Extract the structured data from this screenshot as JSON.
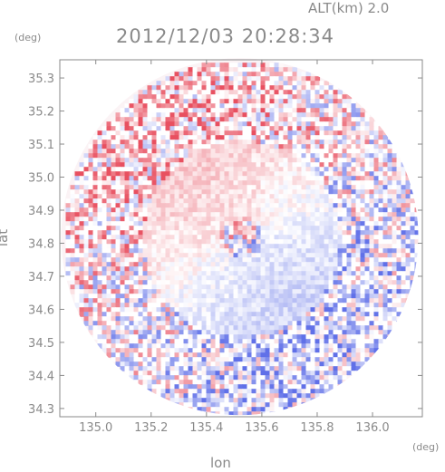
{
  "header": {
    "altitude_label": "ALT(km) 2.0",
    "datetime": "2012/12/03 20:28:34"
  },
  "axes": {
    "x_label": "lon",
    "y_label": "lat",
    "x_unit": "(deg)",
    "y_unit": "(deg)"
  },
  "chart_data": {
    "type": "heatmap",
    "title": "",
    "xlabel": "lon",
    "ylabel": "lat",
    "xlim": [
      134.87,
      136.18
    ],
    "ylim": [
      34.275,
      35.355
    ],
    "x_ticks": [
      135.0,
      135.2,
      135.4,
      135.6,
      135.8,
      136.0
    ],
    "x_tick_labels": [
      "135.0",
      "135.2",
      "135.4",
      "135.6",
      "135.8",
      "136.0"
    ],
    "y_ticks": [
      34.3,
      34.4,
      34.5,
      34.6,
      34.7,
      34.8,
      34.9,
      35.0,
      35.1,
      35.2,
      35.3
    ],
    "y_tick_labels": [
      "34.3",
      "34.4",
      "34.5",
      "34.6",
      "34.7",
      "34.8",
      "34.9",
      "35.0",
      "35.1",
      "35.2",
      "35.3"
    ],
    "radar_center": {
      "lon": 135.52,
      "lat": 34.82
    },
    "radar_range_deg_lat": 0.54,
    "colors": {
      "positive": "#e85060",
      "negative": "#6070e8",
      "zero": "#ffffff",
      "axis": "#8a8a8a"
    },
    "grid": false
  }
}
